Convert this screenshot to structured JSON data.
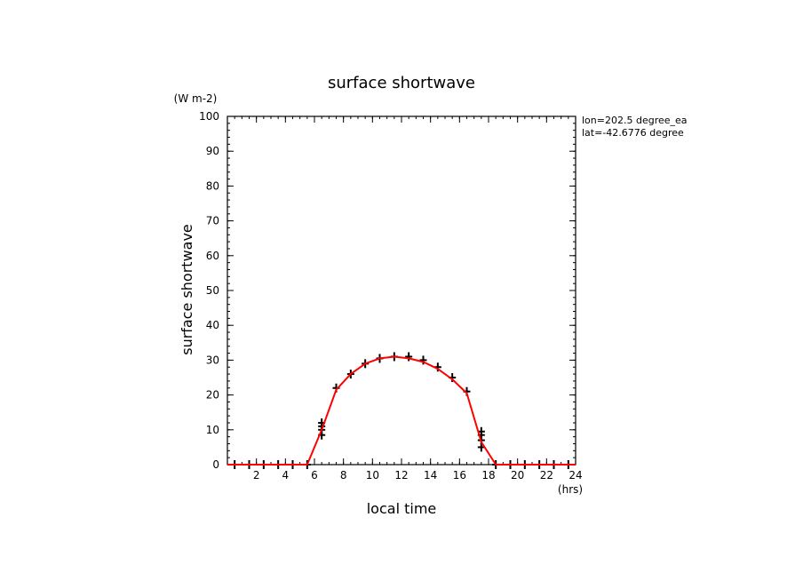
{
  "chart_data": {
    "type": "line",
    "title": "surface shortwave",
    "ylabel": "surface shortwave",
    "yunit": "(W m-2)",
    "xlabel": "local time",
    "xunit": "(hrs)",
    "annotations": [
      "lon=202.5 degree_ea",
      "lat=-42.6776 degree"
    ],
    "xlim": [
      0,
      24
    ],
    "ylim": [
      0,
      100
    ],
    "xticks": [
      2,
      4,
      6,
      8,
      10,
      12,
      14,
      16,
      18,
      20,
      22,
      24
    ],
    "yticks": [
      0,
      10,
      20,
      30,
      40,
      50,
      60,
      70,
      80,
      90,
      100
    ],
    "line_color": "#ff0000",
    "marker_color": "#000000",
    "series": [
      {
        "style": "line",
        "x": [
          0,
          0.5,
          1.5,
          2.5,
          3.5,
          4.5,
          5.5,
          6.5,
          7.5,
          8.5,
          9.5,
          10.5,
          11.5,
          12.5,
          13.5,
          14.5,
          15.5,
          16.5,
          17.5,
          18.5,
          19.5,
          20.5,
          21.5,
          22.5,
          23.5,
          24
        ],
        "y": [
          0,
          0,
          0,
          0,
          0,
          0,
          0,
          10,
          21.5,
          26,
          29,
          30.5,
          31,
          30.5,
          29.5,
          27.5,
          24.5,
          20.5,
          6.5,
          0,
          0,
          0,
          0,
          0,
          0,
          0
        ]
      },
      {
        "style": "markers",
        "x": [
          0.5,
          1.5,
          2.5,
          3.5,
          4.5,
          5.5,
          6.5,
          6.5,
          6.5,
          6.5,
          7.5,
          8.5,
          9.5,
          10.5,
          11.5,
          12.5,
          13.5,
          14.5,
          15.5,
          16.5,
          17.5,
          17.5,
          17.5,
          17.5,
          18.5,
          19.5,
          20.5,
          21.5,
          22.5,
          23.5
        ],
        "y": [
          0,
          0,
          0,
          0,
          0,
          0,
          8.5,
          10,
          11,
          12,
          22,
          26,
          29,
          30.5,
          31,
          31,
          30,
          28,
          25,
          21,
          5,
          7,
          8.5,
          9.5,
          0,
          0,
          0,
          0,
          0,
          0
        ]
      }
    ]
  }
}
